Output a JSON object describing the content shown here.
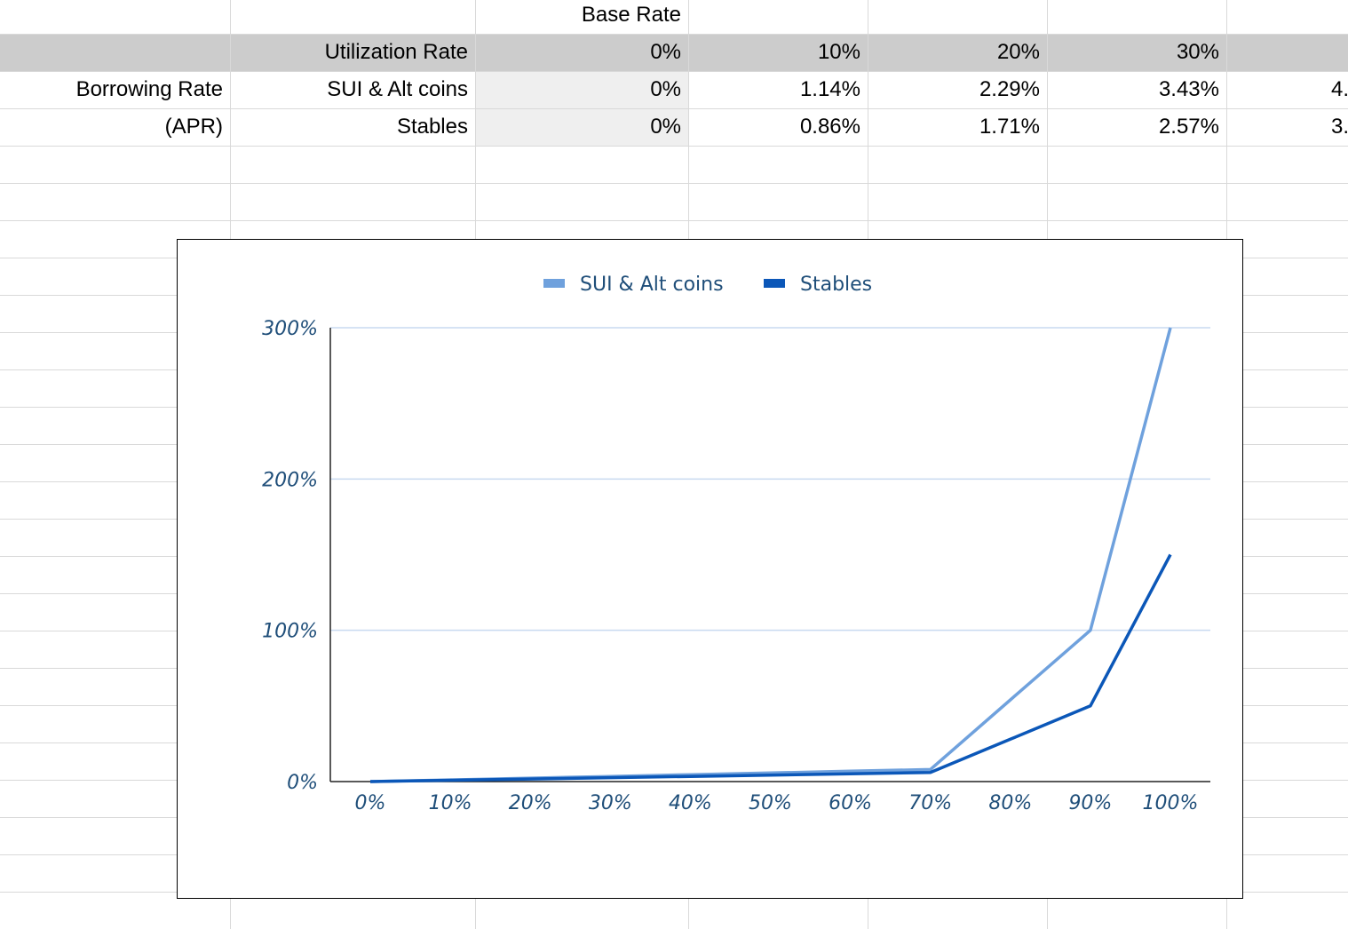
{
  "sheet": {
    "header_row": [
      "",
      "",
      "Base Rate",
      "",
      "",
      "",
      ""
    ],
    "rows": [
      [
        "",
        "Utilization Rate",
        "0%",
        "10%",
        "20%",
        "30%",
        ""
      ],
      [
        "Borrowing Rate",
        "SUI & Alt coins",
        "0%",
        "1.14%",
        "2.29%",
        "3.43%",
        "4."
      ],
      [
        "(APR)",
        "Stables",
        "0%",
        "0.86%",
        "1.71%",
        "2.57%",
        "3."
      ]
    ],
    "colors": {
      "header_band": "#cccccc",
      "base_rate_band": "#efefef",
      "gridline": "#d9d9d9"
    }
  },
  "chart_data": {
    "type": "line",
    "title": "",
    "xlabel": "",
    "ylabel": "",
    "x": [
      "0%",
      "10%",
      "20%",
      "30%",
      "40%",
      "50%",
      "60%",
      "70%",
      "80%",
      "90%",
      "100%"
    ],
    "series": [
      {
        "name": "SUI & Alt coins",
        "color": "#6fa1dd",
        "values": [
          0,
          1.14,
          2.29,
          3.43,
          4.57,
          5.71,
          6.86,
          8,
          54,
          100,
          300
        ]
      },
      {
        "name": "Stables",
        "color": "#0b57b8",
        "values": [
          0,
          0.86,
          1.71,
          2.57,
          3.43,
          4.29,
          5.14,
          6,
          28,
          50,
          150
        ]
      }
    ],
    "y_ticks": [
      "0%",
      "100%",
      "200%",
      "300%"
    ],
    "ylim": [
      0,
      300
    ],
    "grid": true,
    "legend": "top-center"
  }
}
